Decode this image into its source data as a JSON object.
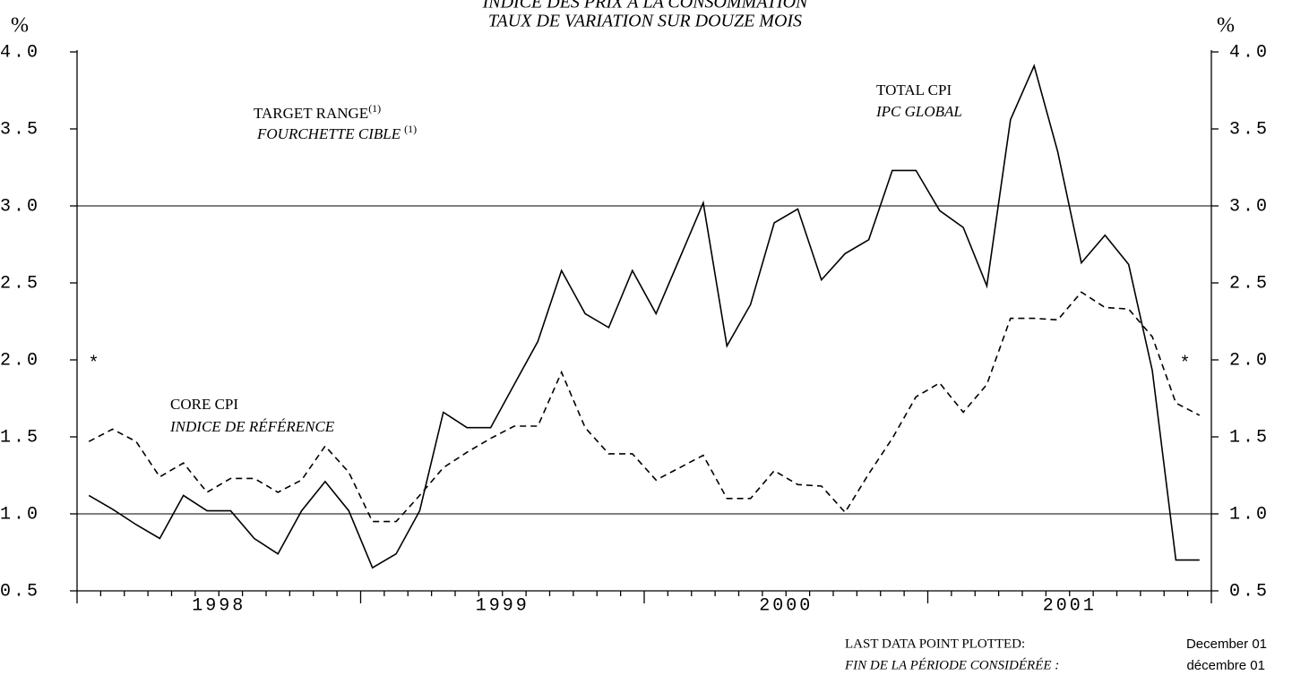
{
  "chart_data": {
    "type": "line",
    "title": "INDICE DES PRIX À LA CONSOMMATION",
    "subtitle": "TAUX DE VARIATION SUR DOUZE MOIS",
    "y_unit_left": "%",
    "y_unit_right": "%",
    "x_year_labels": [
      "1998",
      "1999",
      "2000",
      "2001"
    ],
    "ylim": [
      0.5,
      4.0
    ],
    "yticks": [
      {
        "value": 4.0,
        "label": "4.0"
      },
      3.5,
      {
        "value": 3.0,
        "label": "3.0"
      },
      2.5,
      {
        "value": 2.0,
        "label": "2.0"
      },
      1.5,
      {
        "value": 1.0,
        "label": "1.0"
      },
      0.5
    ],
    "target_range": [
      1.0,
      3.0
    ],
    "target_label": "TARGET RANGE",
    "target_label_fr": "FOURCHETTE CIBLE",
    "target_note": "(1)",
    "marker": "*",
    "marker_value": 2.0,
    "series": [
      {
        "name": "TOTAL CPI",
        "name_fr": "IPC GLOBAL",
        "color": "#000000",
        "dashed": false,
        "values": [
          1.12,
          1.03,
          0.93,
          0.84,
          1.12,
          1.02,
          1.02,
          0.84,
          0.74,
          1.02,
          1.21,
          1.02,
          0.65,
          0.74,
          1.02,
          1.66,
          1.56,
          1.56,
          1.84,
          2.12,
          2.58,
          2.3,
          2.21,
          2.58,
          2.3,
          2.66,
          3.02,
          2.09,
          2.36,
          2.89,
          2.98,
          2.52,
          2.69,
          2.78,
          3.23,
          3.23,
          2.97,
          2.86,
          2.48,
          3.56,
          3.91,
          3.35,
          2.63,
          2.81,
          2.62,
          1.93,
          0.7,
          0.7
        ]
      },
      {
        "name": "CORE CPI",
        "name_fr": "INDICE DE RÉFÉRENCE",
        "color": "#000000",
        "dashed": true,
        "values": [
          1.47,
          1.55,
          1.47,
          1.24,
          1.33,
          1.14,
          1.23,
          1.23,
          1.14,
          1.22,
          1.44,
          1.27,
          0.95,
          0.95,
          1.12,
          1.3,
          1.4,
          1.49,
          1.57,
          1.57,
          1.92,
          1.56,
          1.39,
          1.39,
          1.22,
          1.3,
          1.38,
          1.1,
          1.1,
          1.28,
          1.19,
          1.18,
          1.01,
          1.26,
          1.49,
          1.76,
          1.85,
          1.66,
          1.84,
          2.27,
          2.27,
          2.26,
          2.44,
          2.34,
          2.33,
          2.15,
          1.72,
          1.64
        ]
      }
    ],
    "footer": {
      "last_label": "LAST DATA POINT PLOTTED:",
      "last_value": "December 01",
      "last_label_fr": "FIN DE LA PÉRIODE CONSIDÉRÉE :",
      "last_value_fr": "décembre 01"
    }
  }
}
